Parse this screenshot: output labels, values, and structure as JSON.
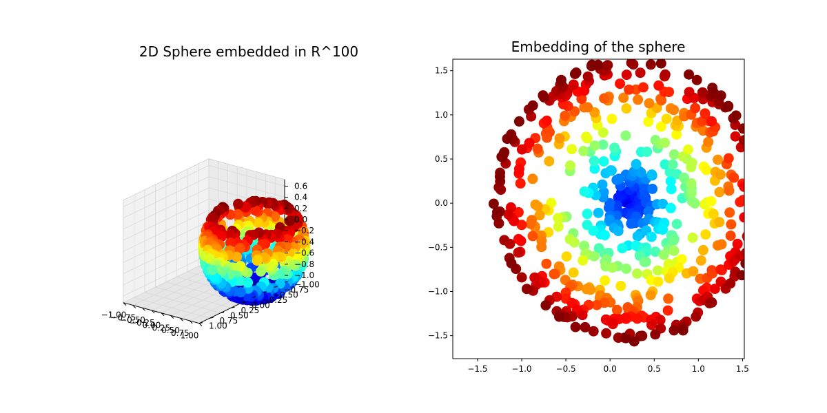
{
  "figure": {
    "left_title": "2D Sphere embedded in R^100",
    "right_title": "Embedding of the sphere"
  },
  "chart_data": [
    {
      "type": "scatter",
      "projection": "3d",
      "title": "2D Sphere embedded in R^100",
      "colormap": "jet",
      "x_ticks": [
        "−1.00",
        "−0.75",
        "−0.50",
        "−0.25",
        "0.00",
        "0.25",
        "0.50",
        "0.75",
        "1.00"
      ],
      "y_ticks": [
        "−1.00",
        "−0.75",
        "−0.50",
        "−0.25",
        "0.00",
        "0.25",
        "0.50",
        "0.75",
        "1.00"
      ],
      "z_ticks": [
        "−1.0",
        "−0.8",
        "−0.6",
        "−0.4",
        "−0.2",
        "0.0",
        "0.2",
        "0.4",
        "0.6"
      ],
      "xlim": [
        -1,
        1
      ],
      "ylim": [
        -1,
        1
      ],
      "zlim": [
        -1,
        0.65
      ],
      "description_of_points": "points sampled on a unit sphere with the top cap removed (z from -1 to about 0.65), colored by z",
      "point_count": 600
    },
    {
      "type": "scatter",
      "title": "Embedding of the sphere",
      "colormap": "jet",
      "x_ticks": [
        "−1.5",
        "−1.0",
        "−0.5",
        "0.0",
        "0.5",
        "1.0",
        "1.5"
      ],
      "y_ticks": [
        "−1.5",
        "−1.0",
        "−0.5",
        "0.0",
        "0.5",
        "1.0",
        "1.5"
      ],
      "xlim": [
        -1.78,
        1.52
      ],
      "ylim": [
        -1.76,
        1.63
      ],
      "center": [
        0.22,
        0.05
      ],
      "outer_radius": 1.55,
      "point_count": 600
    }
  ]
}
